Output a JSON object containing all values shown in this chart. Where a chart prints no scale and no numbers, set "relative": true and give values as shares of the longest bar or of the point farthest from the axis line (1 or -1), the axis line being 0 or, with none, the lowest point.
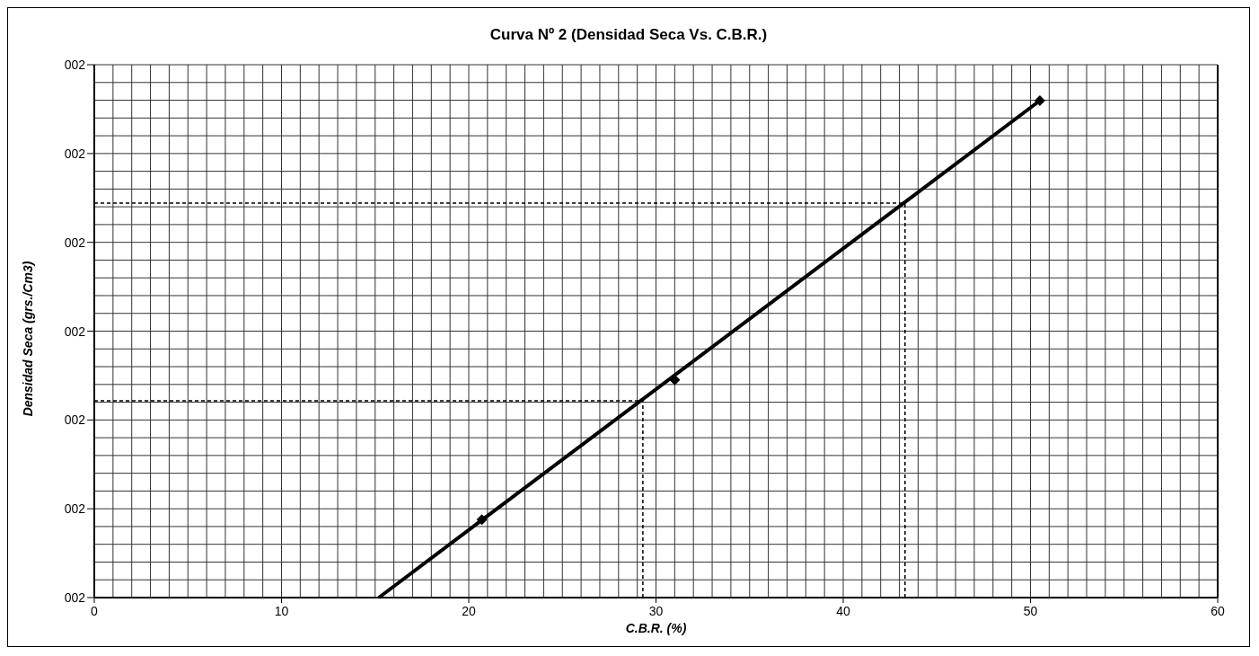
{
  "chart_data": {
    "type": "scatter",
    "title": "Curva Nº 2 (Densidad Seca Vs.  C.B.R.)",
    "xlabel": "C.B.R. (%)",
    "ylabel": "Densidad Seca (grs./Cm3)",
    "relative": true,
    "annotations": [
      "002",
      "002",
      "002",
      "002",
      "002",
      "002",
      "002"
    ],
    "series": [
      {
        "color": "#000000",
        "marker": "diamond",
        "x": [
          20.7,
          31.0,
          50.5
        ],
        "values": [
          0.157,
          0.438,
          1
        ]
      },
      {
        "type": "line",
        "color": "#000000",
        "marker": "none",
        "line_style": "solid",
        "x": [
          15.2,
          50.5
        ],
        "values": [
          0,
          1
        ]
      }
    ],
    "xlim": [
      0,
      60
    ],
    "xticks": [
      0,
      {
        "value": 1,
        "label": null
      },
      {
        "value": 2,
        "label": null
      },
      {
        "value": 3,
        "label": null
      },
      {
        "value": 4,
        "label": null
      },
      {
        "value": 5,
        "label": null
      },
      {
        "value": 6,
        "label": null
      },
      {
        "value": 7,
        "label": null
      },
      {
        "value": 8,
        "label": null
      },
      {
        "value": 9,
        "label": null
      },
      10,
      {
        "value": 11,
        "label": null
      },
      {
        "value": 12,
        "label": null
      },
      {
        "value": 13,
        "label": null
      },
      {
        "value": 14,
        "label": null
      },
      {
        "value": 15,
        "label": null
      },
      {
        "value": 16,
        "label": null
      },
      {
        "value": 17,
        "label": null
      },
      {
        "value": 18,
        "label": null
      },
      {
        "value": 19,
        "label": null
      },
      20,
      {
        "value": 21,
        "label": null
      },
      {
        "value": 22,
        "label": null
      },
      {
        "value": 23,
        "label": null
      },
      {
        "value": 24,
        "label": null
      },
      {
        "value": 25,
        "label": null
      },
      {
        "value": 26,
        "label": null
      },
      {
        "value": 27,
        "label": null
      },
      {
        "value": 28,
        "label": null
      },
      {
        "value": 29,
        "label": null
      },
      30,
      {
        "value": 31,
        "label": null
      },
      {
        "value": 32,
        "label": null
      },
      {
        "value": 33,
        "label": null
      },
      {
        "value": 34,
        "label": null
      },
      {
        "value": 35,
        "label": null
      },
      {
        "value": 36,
        "label": null
      },
      {
        "value": 37,
        "label": null
      },
      {
        "value": 38,
        "label": null
      },
      {
        "value": 39,
        "label": null
      },
      40,
      {
        "value": 41,
        "label": null
      },
      {
        "value": 42,
        "label": null
      },
      {
        "value": 43,
        "label": null
      },
      {
        "value": 44,
        "label": null
      },
      {
        "value": 45,
        "label": null
      },
      {
        "value": 46,
        "label": null
      },
      {
        "value": 47,
        "label": null
      },
      {
        "value": 48,
        "label": null
      },
      {
        "value": 49,
        "label": null
      },
      50,
      {
        "value": 51,
        "label": null
      },
      {
        "value": 52,
        "label": null
      },
      {
        "value": 53,
        "label": null
      },
      {
        "value": 54,
        "label": null
      },
      {
        "value": 55,
        "label": null
      },
      {
        "value": 56,
        "label": null
      },
      {
        "value": 57,
        "label": null
      },
      {
        "value": 58,
        "label": null
      },
      {
        "value": 59,
        "label": null
      },
      60
    ],
    "ref_lines": [
      {
        "axis": "y",
        "value": 0.396,
        "line_style": "dashed",
        "color": "#000000"
      },
      {
        "axis": "y",
        "value": 0.794,
        "line_style": "dashed",
        "color": "#000000"
      },
      {
        "axis": "x",
        "value": 29.3,
        "line_style": "dashed",
        "color": "#000000"
      },
      {
        "axis": "x",
        "value": 43.3,
        "line_style": "dashed",
        "color": "#000000"
      }
    ],
    "grid": true,
    "legend": false
  }
}
